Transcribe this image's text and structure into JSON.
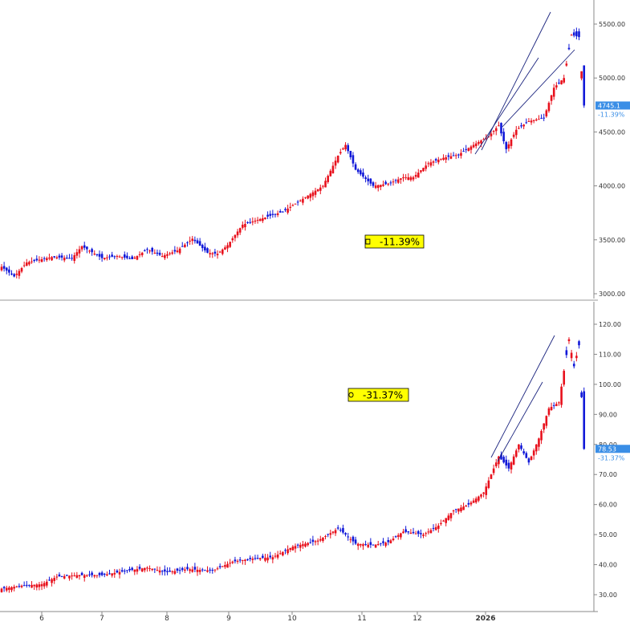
{
  "colors": {
    "up": "#e8101c",
    "down": "#1018d8",
    "badge_bg": "#ffff00",
    "last_price_bg": "#3a8ee6",
    "change_text": "#3a8ee6",
    "axis": "#888888",
    "trendline": "#1a237e"
  },
  "x_axis": {
    "ticks": [
      {
        "label": "6",
        "bold": false
      },
      {
        "label": "7",
        "bold": false
      },
      {
        "label": "8",
        "bold": false
      },
      {
        "label": "9",
        "bold": false
      },
      {
        "label": "10",
        "bold": false
      },
      {
        "label": "11",
        "bold": false
      },
      {
        "label": "12",
        "bold": false
      },
      {
        "label": "2026",
        "bold": true
      }
    ]
  },
  "chart_data": [
    {
      "type": "candlestick",
      "title": "",
      "ylim": [
        2950,
        5650
      ],
      "yticks": [
        "5500.00",
        "5000.00",
        "4500.00",
        "4000.00",
        "3500.00",
        "3000.00"
      ],
      "anchors": [
        [
          0,
          3250
        ],
        [
          5,
          3160
        ],
        [
          10,
          3290
        ],
        [
          20,
          3340
        ],
        [
          28,
          3330
        ],
        [
          32,
          3440
        ],
        [
          40,
          3330
        ],
        [
          46,
          3350
        ],
        [
          52,
          3320
        ],
        [
          58,
          3410
        ],
        [
          64,
          3350
        ],
        [
          70,
          3400
        ],
        [
          76,
          3510
        ],
        [
          82,
          3380
        ],
        [
          86,
          3370
        ],
        [
          90,
          3450
        ],
        [
          96,
          3640
        ],
        [
          104,
          3700
        ],
        [
          112,
          3760
        ],
        [
          120,
          3880
        ],
        [
          128,
          4000
        ],
        [
          134,
          4280
        ],
        [
          137,
          4380
        ],
        [
          141,
          4150
        ],
        [
          148,
          4000
        ],
        [
          154,
          4020
        ],
        [
          160,
          4080
        ],
        [
          164,
          4080
        ],
        [
          170,
          4210
        ],
        [
          176,
          4260
        ],
        [
          182,
          4290
        ],
        [
          188,
          4380
        ],
        [
          194,
          4460
        ],
        [
          198,
          4560
        ],
        [
          201,
          4340
        ],
        [
          205,
          4520
        ],
        [
          210,
          4600
        ],
        [
          216,
          4630
        ],
        [
          220,
          4910
        ],
        [
          224,
          5000
        ],
        [
          227,
          5400
        ],
        [
          230,
          5380
        ],
        [
          232,
          4745
        ]
      ],
      "last_price": "4745.1",
      "change_label": "-11.39%",
      "badge": {
        "glyph": "ㅁ",
        "text": "-11.39%"
      }
    },
    {
      "type": "candlestick",
      "title": "",
      "ylim": [
        26.5,
        123.5
      ],
      "yticks": [
        "120.00",
        "110.00",
        "100.00",
        "90.00",
        "80.00",
        "70.00",
        "60.00",
        "50.00",
        "40.00",
        "30.00"
      ],
      "anchors": [
        [
          0,
          32
        ],
        [
          8,
          33
        ],
        [
          16,
          33.5
        ],
        [
          22,
          36
        ],
        [
          30,
          36.5
        ],
        [
          40,
          36.5
        ],
        [
          50,
          38
        ],
        [
          58,
          39
        ],
        [
          66,
          37.5
        ],
        [
          74,
          38.5
        ],
        [
          84,
          38
        ],
        [
          92,
          41
        ],
        [
          100,
          42
        ],
        [
          108,
          42.5
        ],
        [
          116,
          46
        ],
        [
          126,
          48
        ],
        [
          134,
          52
        ],
        [
          137,
          50
        ],
        [
          141,
          47
        ],
        [
          148,
          46.5
        ],
        [
          154,
          47.5
        ],
        [
          160,
          51
        ],
        [
          168,
          50
        ],
        [
          174,
          53
        ],
        [
          180,
          58
        ],
        [
          186,
          60
        ],
        [
          192,
          64
        ],
        [
          198,
          76
        ],
        [
          202,
          72
        ],
        [
          206,
          80
        ],
        [
          210,
          74
        ],
        [
          214,
          82
        ],
        [
          218,
          92
        ],
        [
          222,
          94
        ],
        [
          226,
          115
        ],
        [
          228,
          106
        ],
        [
          230,
          113
        ],
        [
          232,
          78.5
        ]
      ],
      "last_price": "78.53",
      "change_label": "-31.37%",
      "badge": {
        "glyph": "ㅇ",
        "text": "-31.37%"
      }
    }
  ]
}
